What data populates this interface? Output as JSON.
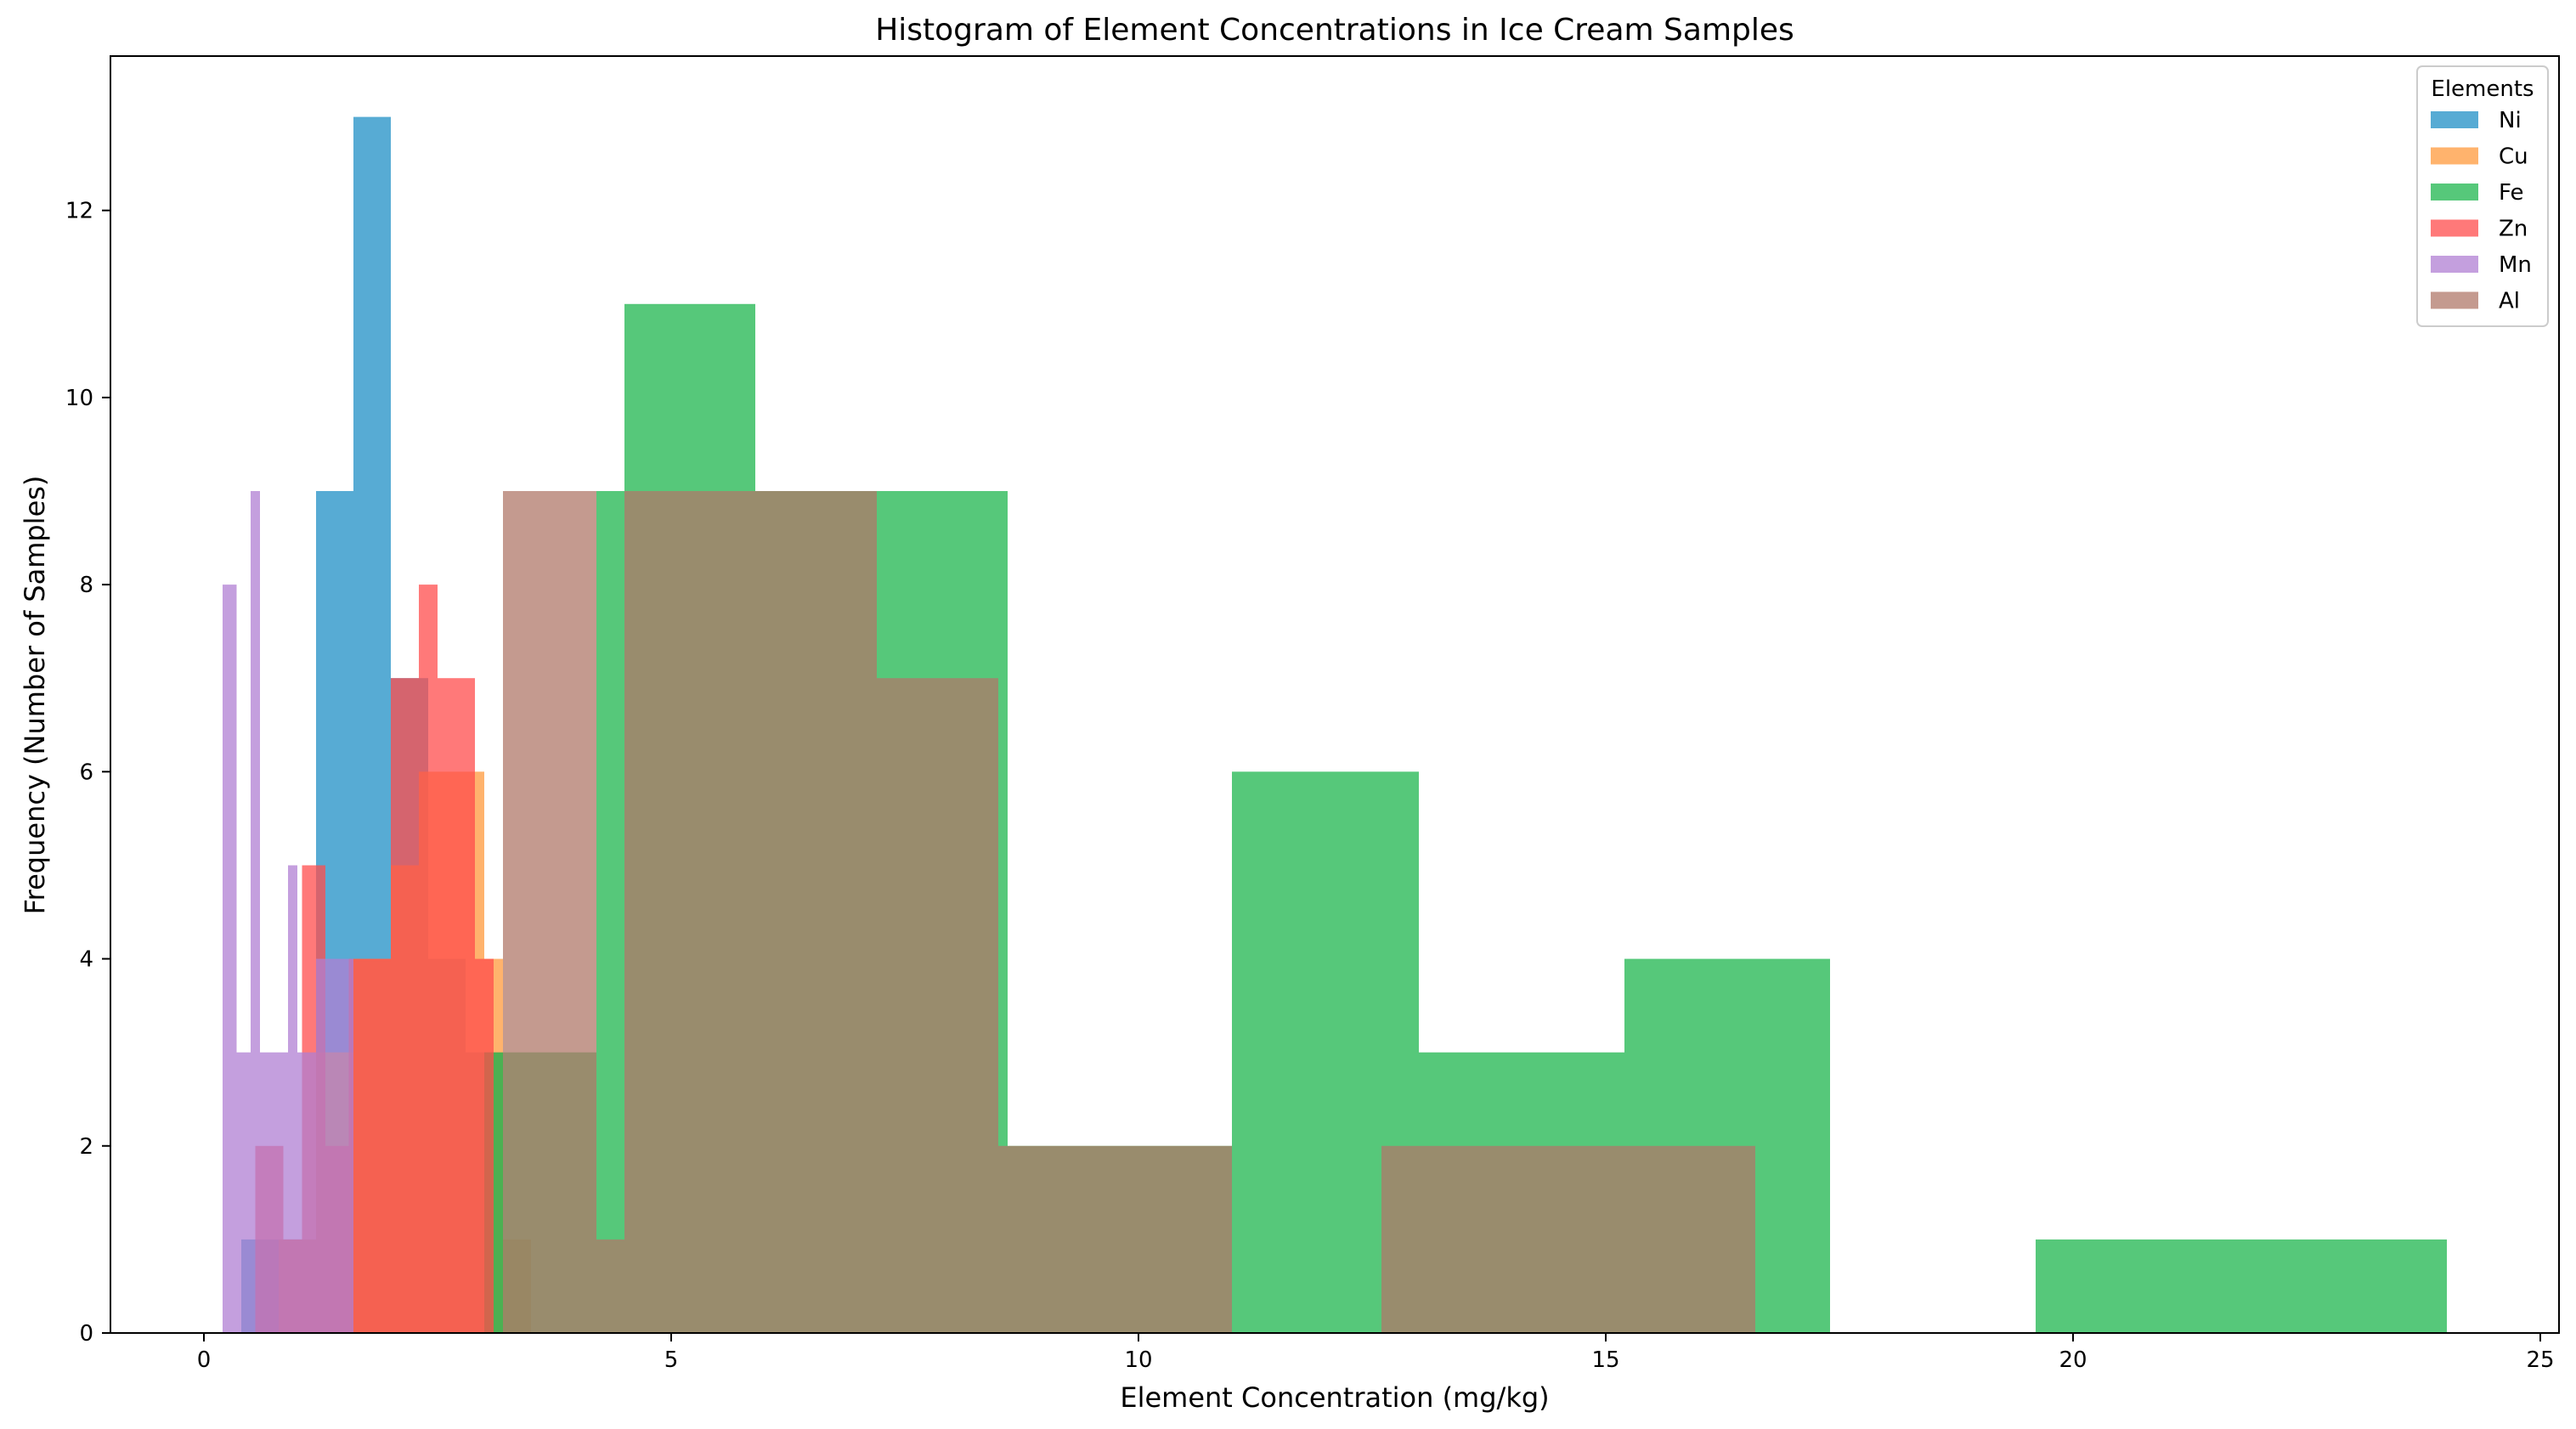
{
  "chart_data": {
    "type": "histogram",
    "title": "Histogram of Element Concentrations in Ice Cream Samples",
    "xlabel": "Element Concentration (mg/kg)",
    "ylabel": "Frequency (Number of Samples)",
    "xlim": [
      -1.0,
      25.2
    ],
    "ylim": [
      0,
      13.65
    ],
    "xticks": [
      0,
      5,
      10,
      15,
      20,
      25
    ],
    "yticks": [
      0,
      2,
      4,
      6,
      8,
      10,
      12
    ],
    "grid": false,
    "legend": {
      "title": "Elements",
      "position": "top-right"
    },
    "series": [
      {
        "name": "Ni",
        "color": "#1f8fc6",
        "bin_edges": [
          0.4,
          0.8,
          1.2,
          1.6,
          2.0,
          2.4,
          2.8,
          3.2
        ],
        "counts": [
          1,
          1,
          9,
          13,
          7,
          4,
          3
        ]
      },
      {
        "name": "Cu",
        "color": "#ff9a3c",
        "bin_edges": [
          0.8,
          1.2,
          1.6,
          2.0,
          2.3,
          2.7,
          3.0,
          3.2,
          3.5
        ],
        "counts": [
          1,
          3,
          4,
          5,
          6,
          6,
          4,
          1
        ]
      },
      {
        "name": "Fe",
        "color": "#1db54e",
        "bin_edges": [
          3.0,
          4.2,
          4.5,
          5.9,
          7.2,
          8.6,
          9.9,
          11.0,
          13.0,
          15.2,
          17.4,
          19.6,
          24.0
        ],
        "counts": [
          3,
          9,
          11,
          9,
          9,
          2,
          2,
          6,
          3,
          4,
          0,
          1
        ]
      },
      {
        "name": "Zn",
        "color": "#ff4c4c",
        "bin_edges": [
          0.55,
          0.85,
          1.05,
          1.3,
          1.55,
          2.0,
          2.3,
          2.5,
          2.9,
          3.1
        ],
        "counts": [
          2,
          1,
          5,
          2,
          4,
          7,
          8,
          7,
          4
        ]
      },
      {
        "name": "Mn",
        "color": "#b07fd3",
        "bin_edges": [
          0.2,
          0.35,
          0.5,
          0.6,
          0.8,
          0.9,
          1.0,
          1.2,
          1.5,
          1.6
        ],
        "counts": [
          8,
          3,
          9,
          3,
          3,
          5,
          3,
          4,
          4
        ]
      },
      {
        "name": "Al",
        "color": "#b0786a",
        "bin_edges": [
          3.2,
          4.2,
          4.5,
          5.9,
          6.0,
          7.2,
          8.5,
          9.9,
          11.0,
          12.6,
          14.6,
          16.6
        ],
        "counts": [
          9,
          1,
          9,
          9,
          9,
          7,
          2,
          2,
          0,
          2,
          2
        ]
      }
    ]
  }
}
